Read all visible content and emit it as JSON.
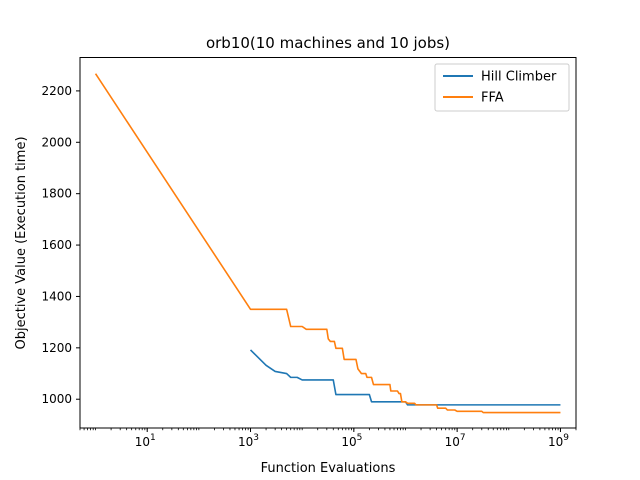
{
  "chart_data": {
    "type": "line",
    "title": "orb10(10 machines and 10 jobs)",
    "xlabel": "Function Evaluations",
    "ylabel": "Objective Value (Execution time)",
    "xscale": "log",
    "xlim": [
      0.5,
      2000000000
    ],
    "ylim": [
      888,
      2330
    ],
    "grid": false,
    "legend_position": "top-right",
    "x_ticks": [
      {
        "value": 10,
        "base": "10",
        "exp": "1"
      },
      {
        "value": 1000,
        "base": "10",
        "exp": "3"
      },
      {
        "value": 100000,
        "base": "10",
        "exp": "5"
      },
      {
        "value": 10000000,
        "base": "10",
        "exp": "7"
      },
      {
        "value": 1000000000,
        "base": "10",
        "exp": "9"
      }
    ],
    "y_ticks": [
      1000,
      1200,
      1400,
      1600,
      1800,
      2000,
      2200
    ],
    "y_tick_labels": [
      "1000",
      "1200",
      "1400",
      "1600",
      "1800",
      "2000",
      "2200"
    ],
    "series": [
      {
        "name": "Hill Climber",
        "color": "#1f77b4",
        "points": [
          [
            1000,
            1192
          ],
          [
            2000,
            1132
          ],
          [
            3000,
            1108
          ],
          [
            5000,
            1100
          ],
          [
            6000,
            1085
          ],
          [
            8000,
            1085
          ],
          [
            10000,
            1075
          ],
          [
            40000,
            1075
          ],
          [
            45000,
            1018
          ],
          [
            200000,
            1018
          ],
          [
            220000,
            990
          ],
          [
            1000000,
            990
          ],
          [
            1100000,
            978
          ],
          [
            1000000000,
            978
          ]
        ]
      },
      {
        "name": "FFA",
        "color": "#ff7f0e",
        "points": [
          [
            1,
            2267
          ],
          [
            1000,
            1350
          ],
          [
            5000,
            1350
          ],
          [
            6000,
            1283
          ],
          [
            10000,
            1283
          ],
          [
            12000,
            1272
          ],
          [
            30000,
            1272
          ],
          [
            32000,
            1235
          ],
          [
            35000,
            1225
          ],
          [
            42000,
            1225
          ],
          [
            45000,
            1198
          ],
          [
            60000,
            1198
          ],
          [
            65000,
            1155
          ],
          [
            110000,
            1155
          ],
          [
            120000,
            1118
          ],
          [
            140000,
            1100
          ],
          [
            170000,
            1100
          ],
          [
            180000,
            1085
          ],
          [
            220000,
            1085
          ],
          [
            240000,
            1057
          ],
          [
            500000,
            1057
          ],
          [
            520000,
            1032
          ],
          [
            700000,
            1032
          ],
          [
            750000,
            1022
          ],
          [
            800000,
            1022
          ],
          [
            850000,
            990
          ],
          [
            1000000,
            990
          ],
          [
            1100000,
            984
          ],
          [
            1500000,
            984
          ],
          [
            1600000,
            978
          ],
          [
            4000000,
            978
          ],
          [
            4200000,
            965
          ],
          [
            6000000,
            965
          ],
          [
            6500000,
            958
          ],
          [
            9000000,
            958
          ],
          [
            10000000,
            953
          ],
          [
            30000000,
            953
          ],
          [
            32000000,
            948
          ],
          [
            1000000000,
            948
          ]
        ]
      }
    ]
  }
}
